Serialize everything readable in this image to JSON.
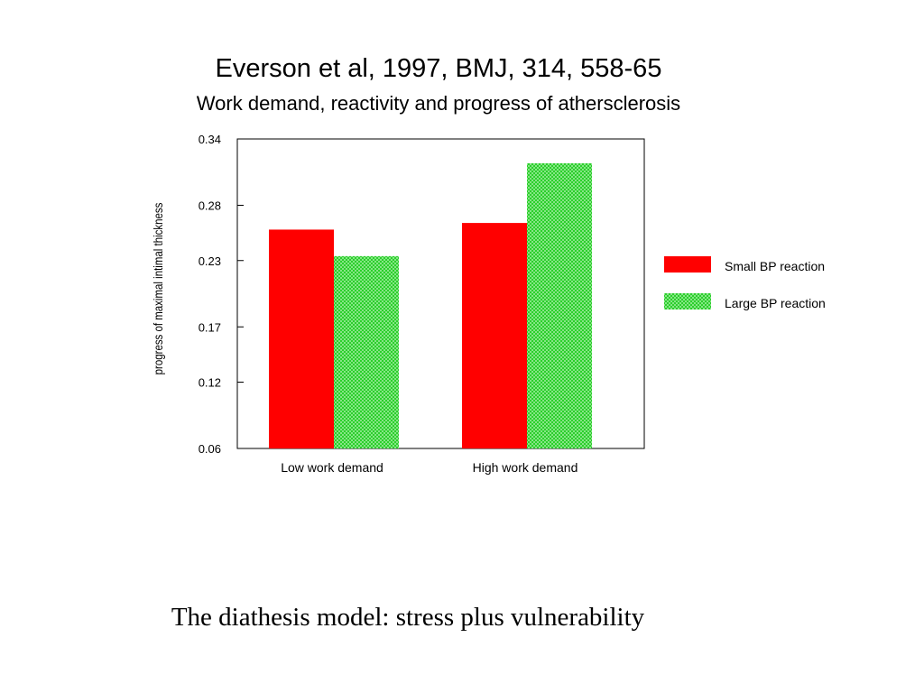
{
  "slide": {
    "title": "Everson et al, 1997, BMJ, 314, 558-65",
    "subtitle": "Work demand, reactivity and progress of athersclerosis",
    "caption": "The diathesis model: stress plus vulnerability"
  },
  "chart_data": {
    "type": "bar",
    "categories": [
      "Low work demand",
      "High work demand"
    ],
    "series": [
      {
        "name": "Small BP reaction",
        "values": [
          0.258,
          0.264
        ],
        "color": "#ff0000",
        "fill": "solid"
      },
      {
        "name": "Large BP reaction",
        "values": [
          0.234,
          0.318
        ],
        "color": "#33dd33",
        "fill": "crosshatch"
      }
    ],
    "xlabel": "",
    "ylabel": "progress of maximal intimal thickness",
    "ylim": [
      0.06,
      0.34
    ],
    "yticks": [
      "0.06",
      "0.12",
      "0.17",
      "0.23",
      "0.28",
      "0.34"
    ],
    "grid": false,
    "legend_position": "right"
  }
}
